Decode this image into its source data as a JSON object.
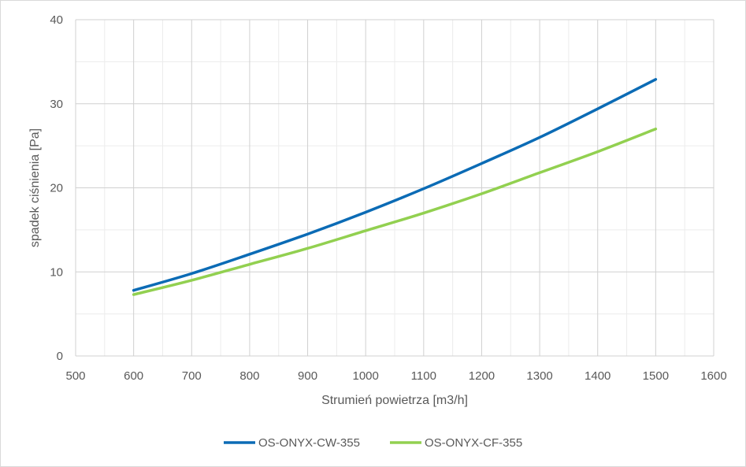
{
  "chart_data": {
    "type": "line",
    "title": "",
    "xlabel": "Strumień powietrza [m3/h]",
    "ylabel": "spadek ciśnienia [Pa]",
    "xlim": [
      500,
      1600
    ],
    "ylim": [
      0,
      40
    ],
    "x_ticks": [
      500,
      600,
      700,
      800,
      900,
      1000,
      1100,
      1200,
      1300,
      1400,
      1500,
      1600
    ],
    "y_ticks": [
      0,
      10,
      20,
      30,
      40
    ],
    "x_minor_step": 50,
    "y_minor_step": 5,
    "grid": true,
    "legend_position": "bottom",
    "x": [
      600,
      700,
      800,
      900,
      1000,
      1100,
      1200,
      1300,
      1400,
      1500
    ],
    "series": [
      {
        "name": "OS-ONYX-CW-355",
        "color": "#0b6bb5",
        "values": [
          7.8,
          9.8,
          12.1,
          14.5,
          17.1,
          19.9,
          22.9,
          26.0,
          29.4,
          32.9
        ]
      },
      {
        "name": "OS-ONYX-CF-355",
        "color": "#92d050",
        "values": [
          7.3,
          9.0,
          10.9,
          12.8,
          14.9,
          17.0,
          19.3,
          21.8,
          24.3,
          27.0
        ]
      }
    ]
  }
}
